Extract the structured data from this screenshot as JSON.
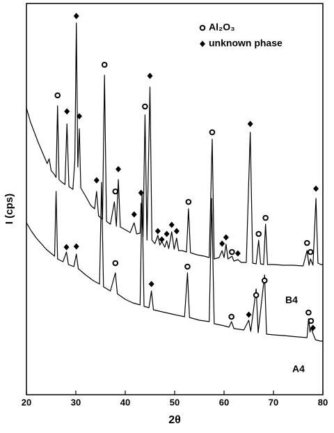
{
  "chart_data": {
    "type": "line",
    "x_label": "2θ",
    "y_label": "I (cps)",
    "xlim": [
      20,
      80
    ],
    "xticks": [
      20,
      30,
      40,
      50,
      60,
      70,
      80
    ],
    "ylim": [
      0,
      562
    ],
    "series": [
      {
        "name": "B4",
        "color": "#000000",
        "x": [
          20.0,
          20.8,
          21.6,
          22.4,
          23.0,
          23.6,
          24.2,
          24.6,
          25.0,
          25.6,
          26.0,
          26.3,
          26.6,
          27.2,
          27.8,
          28.2,
          28.6,
          29.4,
          29.8,
          30.1,
          30.4,
          30.7,
          31.0,
          32.0,
          33.0,
          33.8,
          34.2,
          34.6,
          35.4,
          35.8,
          36.2,
          37.0,
          37.8,
          38.2,
          38.6,
          39.0,
          40.0,
          41.0,
          41.8,
          42.3,
          43.0,
          43.2,
          43.6,
          44.0,
          44.4,
          45.0,
          45.4,
          46.0,
          46.6,
          47.0,
          47.4,
          48.0,
          48.4,
          48.8,
          49.4,
          49.9,
          50.4,
          50.8,
          51.5,
          52.4,
          52.8,
          53.2,
          54.5,
          56.0,
          57.0,
          57.6,
          58.0,
          59.0,
          59.6,
          60.0,
          60.4,
          60.8,
          61.6,
          62.0,
          62.8,
          63.5,
          64.5,
          65.3,
          65.8,
          66.5,
          67.0,
          67.4,
          68.0,
          68.4,
          68.8,
          70.0,
          72.0,
          74.0,
          76.0,
          76.8,
          77.2,
          77.5,
          78.0,
          78.6,
          79.0,
          79.6,
          80.0
        ],
        "values": [
          412,
          392,
          377,
          362,
          352,
          342,
          332,
          339,
          322,
          317,
          312,
          415,
          309,
          305,
          302,
          389,
          299,
          295,
          337,
          534,
          327,
          382,
          297,
          285,
          272,
          267,
          292,
          257,
          252,
          459,
          249,
          245,
          277,
          242,
          309,
          241,
          237,
          233,
          247,
          231,
          232,
          275,
          227,
          402,
          222,
          442,
          222,
          217,
          229,
          215,
          220,
          212,
          221,
          210,
          234,
          209,
          225,
          207,
          207,
          205,
          267,
          204,
          201,
          199,
          197,
          367,
          195,
          197,
          207,
          197,
          216,
          195,
          199,
          192,
          194,
          190,
          190,
          377,
          189,
          188,
          222,
          188,
          187,
          245,
          187,
          187,
          186,
          186,
          185,
          207,
          186,
          195,
          186,
          282,
          189,
          187,
          187
        ]
      },
      {
        "name": "A4",
        "color": "#000000",
        "x": [
          20.0,
          21.0,
          22.0,
          23.0,
          24.0,
          25.0,
          25.7,
          26.0,
          26.3,
          27.4,
          28.1,
          28.5,
          29.6,
          30.1,
          30.5,
          32.0,
          33.5,
          34.8,
          35.2,
          35.6,
          37.0,
          38.0,
          38.4,
          40.0,
          41.5,
          43.0,
          43.4,
          43.8,
          44.8,
          45.3,
          45.7,
          47.5,
          50.0,
          52.0,
          52.6,
          53.0,
          55.0,
          57.0,
          57.5,
          58.0,
          60.0,
          61.0,
          61.5,
          62.0,
          64.0,
          65.0,
          65.4,
          66.5,
          66.9,
          68.2,
          68.6,
          70.0,
          72.0,
          75.0,
          76.8,
          77.1,
          77.4,
          77.6,
          78.0,
          78.5,
          79.5,
          80.0
        ],
        "values": [
          247,
          235,
          225,
          217,
          209,
          203,
          199,
          292,
          195,
          191,
          205,
          187,
          184,
          202,
          181,
          172,
          164,
          159,
          305,
          155,
          149,
          175,
          145,
          137,
          132,
          129,
          292,
          127,
          125,
          149,
          122,
          119,
          115,
          112,
          175,
          111,
          107,
          105,
          282,
          102,
          99,
          97,
          105,
          95,
          93,
          107,
          91,
          152,
          89,
          172,
          87,
          86,
          85,
          83,
          82,
          109,
          90,
          97,
          88,
          79,
          77,
          77
        ]
      }
    ],
    "markers": [
      {
        "name": "Al₂O₃",
        "shape": "circle",
        "color": "#000000",
        "x": [
          26.3,
          35.8,
          38.0,
          44.0,
          52.8,
          57.6,
          61.6,
          67.0,
          68.4,
          76.8,
          77.5,
          38.0,
          52.6,
          61.5,
          66.5,
          68.2,
          77.1,
          77.6
        ],
        "y": [
          430,
          474,
          292,
          414,
          277,
          377,
          205,
          231,
          254,
          218,
          205,
          189,
          184,
          112,
          143,
          164,
          118,
          106
        ]
      },
      {
        "name": "unknown phase",
        "shape": "diamond",
        "color": "#000000",
        "x": [
          28.2,
          30.1,
          30.7,
          34.2,
          38.6,
          41.8,
          43.2,
          45.0,
          46.6,
          47.4,
          48.4,
          49.4,
          50.4,
          59.6,
          60.4,
          62.8,
          65.3,
          78.6,
          28.1,
          30.1,
          45.3,
          65.0,
          78.0
        ],
        "y": [
          407,
          544,
          400,
          308,
          324,
          259,
          290,
          458,
          235,
          223,
          231,
          244,
          235,
          217,
          226,
          203,
          389,
          296,
          212,
          213,
          159,
          115,
          96
        ]
      }
    ]
  }
}
